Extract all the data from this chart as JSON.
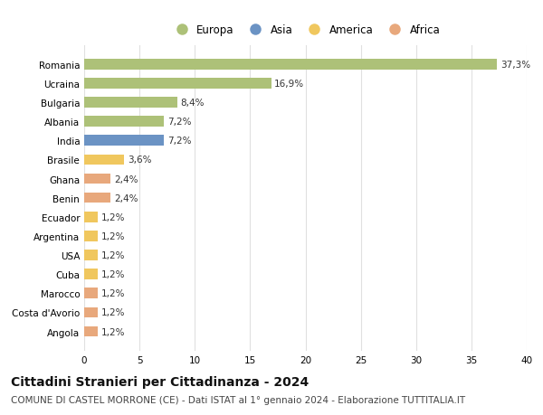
{
  "countries": [
    "Romania",
    "Ucraina",
    "Bulgaria",
    "Albania",
    "India",
    "Brasile",
    "Ghana",
    "Benin",
    "Ecuador",
    "Argentina",
    "USA",
    "Cuba",
    "Marocco",
    "Costa d'Avorio",
    "Angola"
  ],
  "values": [
    37.3,
    16.9,
    8.4,
    7.2,
    7.2,
    3.6,
    2.4,
    2.4,
    1.2,
    1.2,
    1.2,
    1.2,
    1.2,
    1.2,
    1.2
  ],
  "labels": [
    "37,3%",
    "16,9%",
    "8,4%",
    "7,2%",
    "7,2%",
    "3,6%",
    "2,4%",
    "2,4%",
    "1,2%",
    "1,2%",
    "1,2%",
    "1,2%",
    "1,2%",
    "1,2%",
    "1,2%"
  ],
  "continents": [
    "Europa",
    "Europa",
    "Europa",
    "Europa",
    "Asia",
    "America",
    "Africa",
    "Africa",
    "America",
    "America",
    "America",
    "America",
    "Africa",
    "Africa",
    "Africa"
  ],
  "continent_colors": {
    "Europa": "#adc178",
    "Asia": "#6b93c4",
    "America": "#f0c75e",
    "Africa": "#e8a87c"
  },
  "legend_order": [
    "Europa",
    "Asia",
    "America",
    "Africa"
  ],
  "title": "Cittadini Stranieri per Cittadinanza - 2024",
  "subtitle": "COMUNE DI CASTEL MORRONE (CE) - Dati ISTAT al 1° gennaio 2024 - Elaborazione TUTTITALIA.IT",
  "xlim": [
    0,
    40
  ],
  "xticks": [
    0,
    5,
    10,
    15,
    20,
    25,
    30,
    35,
    40
  ],
  "background_color": "#ffffff",
  "grid_color": "#e0e0e0",
  "title_fontsize": 10,
  "subtitle_fontsize": 7.5,
  "label_fontsize": 7.5,
  "tick_fontsize": 7.5,
  "legend_fontsize": 8.5
}
